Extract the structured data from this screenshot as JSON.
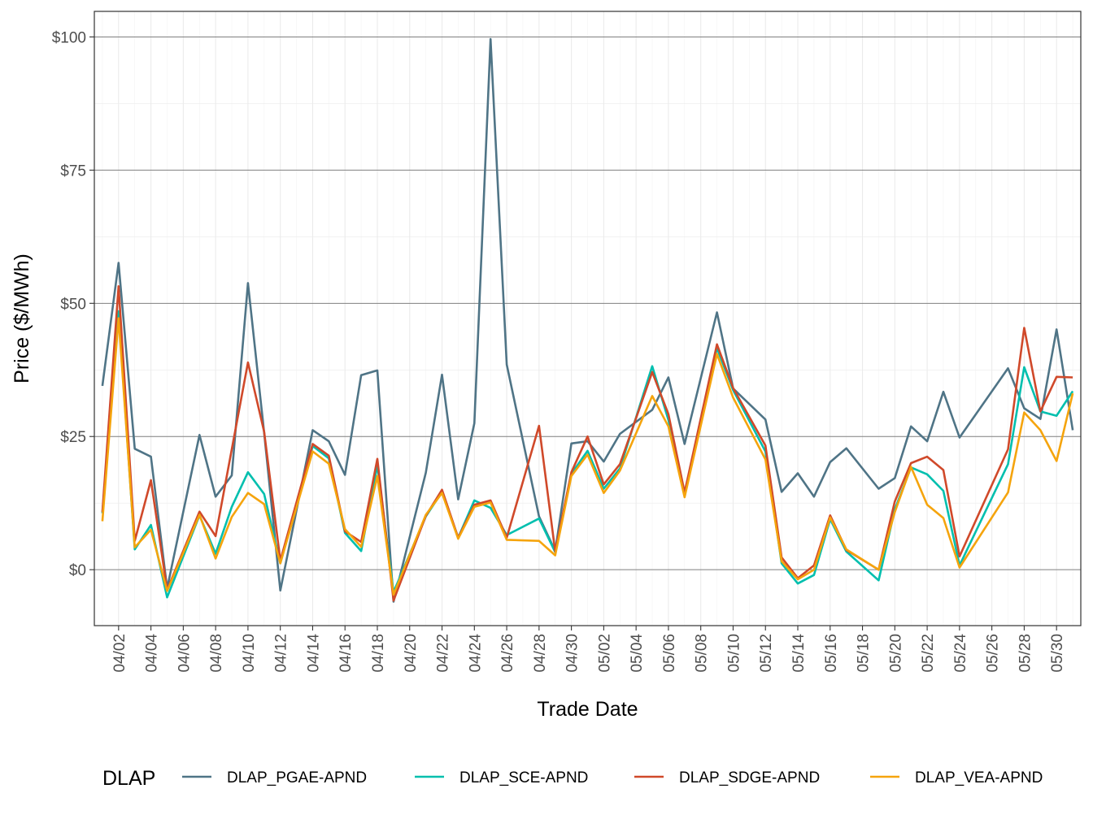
{
  "chart_data": {
    "type": "line",
    "title": "",
    "xlabel": "Trade Date",
    "ylabel": "Price ($/MWh)",
    "x_range": [
      "2021-03-31T12:00",
      "2021-05-31T12:00"
    ],
    "ylim": [
      -10.5,
      104.8
    ],
    "y_ticks": [
      0,
      25,
      50,
      75,
      100
    ],
    "y_tick_labels": [
      "$0",
      "$25",
      "$50",
      "$75",
      "$100"
    ],
    "x_tick_labels": [
      "04/02",
      "04/04",
      "04/06",
      "04/08",
      "04/10",
      "04/12",
      "04/14",
      "04/16",
      "04/18",
      "04/20",
      "04/22",
      "04/24",
      "04/26",
      "04/28",
      "04/30",
      "05/02",
      "05/04",
      "05/06",
      "05/08",
      "05/10",
      "05/12",
      "05/14",
      "05/16",
      "05/18",
      "05/20",
      "05/22",
      "05/24",
      "05/26",
      "05/28",
      "05/30"
    ],
    "x_ticks": [
      "2021-04-02",
      "2021-04-04",
      "2021-04-06",
      "2021-04-08",
      "2021-04-10",
      "2021-04-12",
      "2021-04-14",
      "2021-04-16",
      "2021-04-18",
      "2021-04-20",
      "2021-04-22",
      "2021-04-24",
      "2021-04-26",
      "2021-04-28",
      "2021-04-30",
      "2021-05-02",
      "2021-05-04",
      "2021-05-06",
      "2021-05-08",
      "2021-05-10",
      "2021-05-12",
      "2021-05-14",
      "2021-05-16",
      "2021-05-18",
      "2021-05-20",
      "2021-05-22",
      "2021-05-24",
      "2021-05-26",
      "2021-05-28",
      "2021-05-30"
    ],
    "grid": true,
    "legend": {
      "title": "DLAP",
      "position": "bottom"
    },
    "series": [
      {
        "name": "DLAP_PGAE-APND",
        "color": "#4f7486",
        "points": [
          [
            "2021-04-01",
            34.5
          ],
          [
            "2021-04-02",
            57.6
          ],
          [
            "2021-04-03",
            22.7
          ],
          [
            "2021-04-04",
            21.2
          ],
          [
            "2021-04-05",
            -3.5
          ],
          [
            "2021-04-07",
            25.3
          ],
          [
            "2021-04-08",
            13.7
          ],
          [
            "2021-04-09",
            17.7
          ],
          [
            "2021-04-10",
            53.8
          ],
          [
            "2021-04-11",
            25.7
          ],
          [
            "2021-04-12",
            -3.9
          ],
          [
            "2021-04-14",
            26.2
          ],
          [
            "2021-04-15",
            24.1
          ],
          [
            "2021-04-16",
            17.8
          ],
          [
            "2021-04-17",
            36.5
          ],
          [
            "2021-04-18",
            37.4
          ],
          [
            "2021-04-19",
            -6.0
          ],
          [
            "2021-04-21",
            18.2
          ],
          [
            "2021-04-22",
            36.6
          ],
          [
            "2021-04-23",
            13.2
          ],
          [
            "2021-04-24",
            27.5
          ],
          [
            "2021-04-25",
            99.6
          ],
          [
            "2021-04-26",
            38.5
          ],
          [
            "2021-04-28",
            10.0
          ],
          [
            "2021-04-29",
            3.5
          ],
          [
            "2021-04-30",
            23.7
          ],
          [
            "2021-05-01",
            24.1
          ],
          [
            "2021-05-02",
            20.3
          ],
          [
            "2021-05-03",
            25.5
          ],
          [
            "2021-05-05",
            30.0
          ],
          [
            "2021-05-06",
            36.1
          ],
          [
            "2021-05-07",
            23.6
          ],
          [
            "2021-05-09",
            48.3
          ],
          [
            "2021-05-10",
            34.0
          ],
          [
            "2021-05-12",
            28.2
          ],
          [
            "2021-05-13",
            14.6
          ],
          [
            "2021-05-14",
            18.1
          ],
          [
            "2021-05-15",
            13.7
          ],
          [
            "2021-05-16",
            20.2
          ],
          [
            "2021-05-17",
            22.8
          ],
          [
            "2021-05-19",
            15.2
          ],
          [
            "2021-05-20",
            17.2
          ],
          [
            "2021-05-21",
            26.9
          ],
          [
            "2021-05-22",
            24.1
          ],
          [
            "2021-05-23",
            33.4
          ],
          [
            "2021-05-24",
            24.8
          ],
          [
            "2021-05-27",
            37.8
          ],
          [
            "2021-05-28",
            30.3
          ],
          [
            "2021-05-29",
            28.3
          ],
          [
            "2021-05-30",
            45.1
          ],
          [
            "2021-05-31",
            26.2
          ]
        ]
      },
      {
        "name": "DLAP_SCE-APND",
        "color": "#00bfae",
        "points": [
          [
            "2021-04-01",
            10.6
          ],
          [
            "2021-04-02",
            48.5
          ],
          [
            "2021-04-03",
            3.8
          ],
          [
            "2021-04-04",
            8.4
          ],
          [
            "2021-04-05",
            -5.2
          ],
          [
            "2021-04-07",
            10.2
          ],
          [
            "2021-04-08",
            3.0
          ],
          [
            "2021-04-09",
            11.8
          ],
          [
            "2021-04-10",
            18.3
          ],
          [
            "2021-04-11",
            14.2
          ],
          [
            "2021-04-12",
            1.2
          ],
          [
            "2021-04-14",
            23.2
          ],
          [
            "2021-04-15",
            20.9
          ],
          [
            "2021-04-16",
            6.9
          ],
          [
            "2021-04-17",
            3.5
          ],
          [
            "2021-04-18",
            19.6
          ],
          [
            "2021-04-19",
            -4.2
          ],
          [
            "2021-04-21",
            10.0
          ],
          [
            "2021-04-22",
            14.6
          ],
          [
            "2021-04-23",
            6.0
          ],
          [
            "2021-04-24",
            13.0
          ],
          [
            "2021-04-25",
            11.6
          ],
          [
            "2021-04-26",
            6.5
          ],
          [
            "2021-04-28",
            9.6
          ],
          [
            "2021-04-29",
            3.3
          ],
          [
            "2021-04-30",
            18.0
          ],
          [
            "2021-05-01",
            22.3
          ],
          [
            "2021-05-02",
            15.2
          ],
          [
            "2021-05-03",
            19.0
          ],
          [
            "2021-05-05",
            38.2
          ],
          [
            "2021-05-06",
            28.1
          ],
          [
            "2021-05-07",
            14.2
          ],
          [
            "2021-05-09",
            41.6
          ],
          [
            "2021-05-10",
            33.7
          ],
          [
            "2021-05-12",
            22.2
          ],
          [
            "2021-05-13",
            1.2
          ],
          [
            "2021-05-14",
            -2.6
          ],
          [
            "2021-05-15",
            -1.0
          ],
          [
            "2021-05-16",
            9.5
          ],
          [
            "2021-05-17",
            3.4
          ],
          [
            "2021-05-19",
            -2.0
          ],
          [
            "2021-05-20",
            11.3
          ],
          [
            "2021-05-21",
            19.2
          ],
          [
            "2021-05-22",
            17.9
          ],
          [
            "2021-05-23",
            14.8
          ],
          [
            "2021-05-24",
            0.8
          ],
          [
            "2021-05-27",
            19.8
          ],
          [
            "2021-05-28",
            38.0
          ],
          [
            "2021-05-29",
            29.7
          ],
          [
            "2021-05-30",
            28.9
          ],
          [
            "2021-05-31",
            33.5
          ]
        ]
      },
      {
        "name": "DLAP_SDGE-APND",
        "color": "#d0492a",
        "points": [
          [
            "2021-04-01",
            10.8
          ],
          [
            "2021-04-02",
            53.2
          ],
          [
            "2021-04-03",
            5.4
          ],
          [
            "2021-04-04",
            16.8
          ],
          [
            "2021-04-05",
            -3.8
          ],
          [
            "2021-04-07",
            10.9
          ],
          [
            "2021-04-08",
            6.3
          ],
          [
            "2021-04-09",
            22.6
          ],
          [
            "2021-04-10",
            38.9
          ],
          [
            "2021-04-11",
            25.9
          ],
          [
            "2021-04-12",
            1.7
          ],
          [
            "2021-04-14",
            23.6
          ],
          [
            "2021-04-15",
            21.4
          ],
          [
            "2021-04-16",
            7.2
          ],
          [
            "2021-04-17",
            5.2
          ],
          [
            "2021-04-18",
            20.8
          ],
          [
            "2021-04-19",
            -5.8
          ],
          [
            "2021-04-21",
            10.1
          ],
          [
            "2021-04-22",
            15.0
          ],
          [
            "2021-04-23",
            6.0
          ],
          [
            "2021-04-24",
            12.2
          ],
          [
            "2021-04-25",
            13.0
          ],
          [
            "2021-04-26",
            6.0
          ],
          [
            "2021-04-28",
            27.0
          ],
          [
            "2021-04-29",
            3.4
          ],
          [
            "2021-04-30",
            18.3
          ],
          [
            "2021-05-01",
            25.0
          ],
          [
            "2021-05-02",
            16.0
          ],
          [
            "2021-05-03",
            19.8
          ],
          [
            "2021-05-05",
            37.1
          ],
          [
            "2021-05-06",
            29.2
          ],
          [
            "2021-05-07",
            14.5
          ],
          [
            "2021-05-09",
            42.3
          ],
          [
            "2021-05-10",
            34.1
          ],
          [
            "2021-05-12",
            23.3
          ],
          [
            "2021-05-13",
            2.3
          ],
          [
            "2021-05-14",
            -1.6
          ],
          [
            "2021-05-15",
            0.8
          ],
          [
            "2021-05-16",
            10.2
          ],
          [
            "2021-05-17",
            3.7
          ],
          [
            "2021-05-19",
            0.0
          ],
          [
            "2021-05-20",
            12.8
          ],
          [
            "2021-05-21",
            20.0
          ],
          [
            "2021-05-22",
            21.2
          ],
          [
            "2021-05-23",
            18.7
          ],
          [
            "2021-05-24",
            2.5
          ],
          [
            "2021-05-27",
            22.6
          ],
          [
            "2021-05-28",
            45.4
          ],
          [
            "2021-05-29",
            29.7
          ],
          [
            "2021-05-30",
            36.2
          ],
          [
            "2021-05-31",
            36.1
          ]
        ]
      },
      {
        "name": "DLAP_VEA-APND",
        "color": "#f5a40d",
        "points": [
          [
            "2021-04-01",
            9.1
          ],
          [
            "2021-04-02",
            47.2
          ],
          [
            "2021-04-03",
            4.2
          ],
          [
            "2021-04-04",
            7.5
          ],
          [
            "2021-04-05",
            -4.0
          ],
          [
            "2021-04-07",
            10.3
          ],
          [
            "2021-04-08",
            2.1
          ],
          [
            "2021-04-09",
            9.9
          ],
          [
            "2021-04-10",
            14.4
          ],
          [
            "2021-04-11",
            12.3
          ],
          [
            "2021-04-12",
            1.2
          ],
          [
            "2021-04-14",
            22.2
          ],
          [
            "2021-04-15",
            19.9
          ],
          [
            "2021-04-16",
            7.6
          ],
          [
            "2021-04-17",
            4.3
          ],
          [
            "2021-04-18",
            17.6
          ],
          [
            "2021-04-19",
            -4.7
          ],
          [
            "2021-04-21",
            10.3
          ],
          [
            "2021-04-22",
            14.4
          ],
          [
            "2021-04-23",
            5.8
          ],
          [
            "2021-04-24",
            11.8
          ],
          [
            "2021-04-25",
            12.6
          ],
          [
            "2021-04-26",
            5.6
          ],
          [
            "2021-04-28",
            5.4
          ],
          [
            "2021-04-29",
            2.7
          ],
          [
            "2021-04-30",
            17.6
          ],
          [
            "2021-05-01",
            21.6
          ],
          [
            "2021-05-02",
            14.4
          ],
          [
            "2021-05-03",
            18.6
          ],
          [
            "2021-05-05",
            32.6
          ],
          [
            "2021-05-06",
            26.9
          ],
          [
            "2021-05-07",
            13.6
          ],
          [
            "2021-05-09",
            40.5
          ],
          [
            "2021-05-10",
            32.3
          ],
          [
            "2021-05-12",
            20.7
          ],
          [
            "2021-05-13",
            1.6
          ],
          [
            "2021-05-14",
            -1.8
          ],
          [
            "2021-05-15",
            0.0
          ],
          [
            "2021-05-16",
            9.8
          ],
          [
            "2021-05-17",
            3.8
          ],
          [
            "2021-05-19",
            0.0
          ],
          [
            "2021-05-20",
            10.8
          ],
          [
            "2021-05-21",
            19.3
          ],
          [
            "2021-05-22",
            12.2
          ],
          [
            "2021-05-23",
            9.7
          ],
          [
            "2021-05-24",
            0.4
          ],
          [
            "2021-05-27",
            14.5
          ],
          [
            "2021-05-28",
            29.5
          ],
          [
            "2021-05-29",
            26.2
          ],
          [
            "2021-05-30",
            20.4
          ],
          [
            "2021-05-31",
            33.1
          ]
        ]
      }
    ]
  }
}
